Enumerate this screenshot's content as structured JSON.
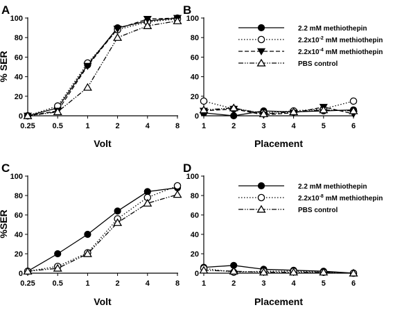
{
  "chart_data": [
    {
      "panel": "A",
      "type": "line",
      "xlabel": "Volt",
      "ylabel": "% SER",
      "x": [
        "0.25",
        "0.5",
        "1",
        "2",
        "4",
        "8"
      ],
      "ylim": [
        0,
        100
      ],
      "yticks": [
        "0",
        "20",
        "40",
        "60",
        "80",
        "100"
      ],
      "series": [
        {
          "style": "solid",
          "marker": "filled-circle",
          "values": [
            0,
            8,
            52,
            90,
            97,
            100
          ]
        },
        {
          "style": "dotted",
          "marker": "open-circle",
          "values": [
            0,
            10,
            54,
            88,
            96,
            99
          ]
        },
        {
          "style": "dashed",
          "marker": "filled-triangle-down",
          "values": [
            0,
            5,
            51,
            89,
            99,
            100
          ]
        },
        {
          "style": "dash-dot-dot",
          "marker": "open-triangle",
          "values": [
            0,
            4,
            29,
            80,
            92,
            97
          ]
        }
      ]
    },
    {
      "panel": "B",
      "type": "line",
      "xlabel": "Placement",
      "ylabel": "",
      "x": [
        "1",
        "2",
        "3",
        "4",
        "5",
        "6"
      ],
      "ylim": [
        0,
        100
      ],
      "yticks": [
        "0",
        "20",
        "40",
        "60",
        "80",
        "100"
      ],
      "legend_position": "top-right",
      "legend": [
        "2.2 mM methiothepin",
        "2.2x10",
        "2.2x10",
        "PBS control"
      ],
      "legend_exponents": [
        "",
        "-2",
        "-4",
        ""
      ],
      "legend_suffix": [
        "",
        " mM methiothepin",
        " mM methiothepin",
        ""
      ],
      "series": [
        {
          "style": "solid",
          "marker": "filled-circle",
          "values": [
            3,
            0,
            5,
            4,
            5,
            6
          ]
        },
        {
          "style": "dotted",
          "marker": "open-circle",
          "values": [
            15,
            7,
            3,
            5,
            7,
            15
          ]
        },
        {
          "style": "dashed",
          "marker": "filled-triangle-down",
          "values": [
            5,
            7,
            1,
            3,
            9,
            2
          ]
        },
        {
          "style": "dash-dot-dot",
          "marker": "open-triangle",
          "values": [
            6,
            8,
            2,
            4,
            6,
            5
          ]
        }
      ]
    },
    {
      "panel": "C",
      "type": "line",
      "xlabel": "Volt",
      "ylabel": "%SER",
      "x": [
        "0.25",
        "0.5",
        "1",
        "2",
        "4",
        "8"
      ],
      "ylim": [
        0,
        100
      ],
      "yticks": [
        "0",
        "20",
        "40",
        "60",
        "80",
        "100"
      ],
      "series": [
        {
          "style": "solid",
          "marker": "filled-circle",
          "values": [
            2,
            20,
            40,
            64,
            84,
            88
          ]
        },
        {
          "style": "dotted",
          "marker": "open-circle",
          "values": [
            2,
            7,
            21,
            56,
            78,
            90
          ]
        },
        {
          "style": "dash-dot-dot",
          "marker": "open-triangle",
          "values": [
            2,
            5,
            20,
            52,
            72,
            81
          ]
        }
      ]
    },
    {
      "panel": "D",
      "type": "line",
      "xlabel": "Placement",
      "ylabel": "",
      "x": [
        "1",
        "2",
        "3",
        "4",
        "5",
        "6"
      ],
      "ylim": [
        0,
        100
      ],
      "yticks": [
        "0",
        "20",
        "40",
        "60",
        "80",
        "100"
      ],
      "legend_position": "top-right",
      "legend": [
        "2.2 mM methiothepin",
        "2.2x10",
        "PBS control"
      ],
      "legend_exponents": [
        "",
        "-8",
        ""
      ],
      "legend_suffix": [
        "",
        " mM methiothepin",
        ""
      ],
      "series": [
        {
          "style": "solid",
          "marker": "filled-circle",
          "values": [
            6,
            8,
            4,
            3,
            2,
            0
          ]
        },
        {
          "style": "dotted",
          "marker": "open-circle",
          "values": [
            5,
            1,
            2,
            2,
            1,
            0
          ]
        },
        {
          "style": "dash-dot-dot",
          "marker": "open-triangle",
          "values": [
            3,
            2,
            1,
            1,
            1,
            0
          ]
        }
      ]
    }
  ]
}
